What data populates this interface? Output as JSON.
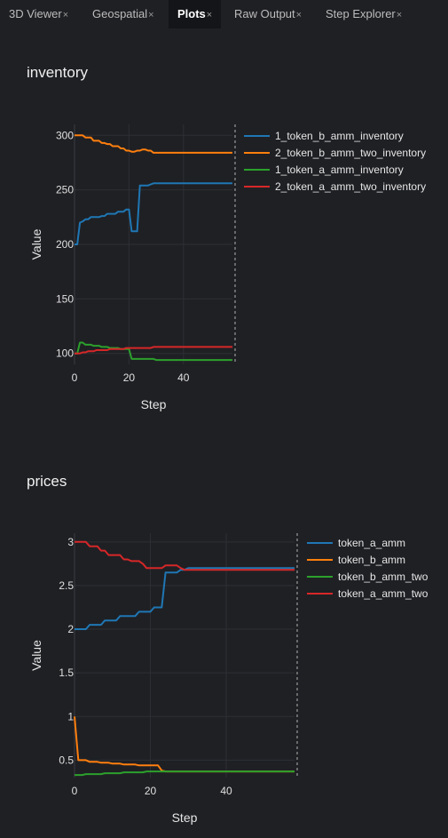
{
  "tabs": [
    {
      "label": "3D Viewer",
      "close": "×",
      "active": false
    },
    {
      "label": "Geospatial",
      "close": "×",
      "active": false
    },
    {
      "label": "Plots",
      "close": "×",
      "active": true
    },
    {
      "label": "Raw Output",
      "close": "×",
      "active": false
    },
    {
      "label": "Step Explorer",
      "close": "×",
      "active": false
    }
  ],
  "panels": {
    "inventory": {
      "title": "inventory"
    },
    "prices": {
      "title": "prices"
    }
  },
  "colors": {
    "blue": "#1f77b4",
    "orange": "#ff7f0e",
    "green": "#2ca02c",
    "red": "#d62728"
  },
  "chart_data": [
    {
      "type": "line",
      "title": "inventory",
      "xlabel": "Step",
      "ylabel": "Value",
      "xlim": [
        0,
        58
      ],
      "ylim": [
        90,
        310
      ],
      "xticks": [
        0,
        20,
        40
      ],
      "yticks": [
        100,
        150,
        200,
        250,
        300
      ],
      "ytick_labels": [
        "100",
        "150",
        "200",
        "250",
        "300"
      ],
      "legend_position": "right",
      "series": [
        {
          "name": "1_token_b_amm_inventory",
          "color": "#1f77b4",
          "x": [
            0,
            1,
            2,
            3,
            4,
            5,
            6,
            7,
            8,
            9,
            10,
            11,
            12,
            13,
            14,
            15,
            16,
            17,
            18,
            19,
            20,
            21,
            22,
            23,
            24,
            25,
            26,
            27,
            28,
            29,
            30,
            35,
            40,
            45,
            50,
            58
          ],
          "y": [
            200,
            200,
            220,
            221,
            223,
            223,
            225,
            225,
            225,
            225,
            226,
            226,
            228,
            228,
            228,
            228,
            230,
            230,
            230,
            232,
            232,
            212,
            212,
            212,
            254,
            254,
            254,
            254,
            255,
            256,
            256,
            256,
            256,
            256,
            256,
            256
          ]
        },
        {
          "name": "2_token_b_amm_two_inventory",
          "color": "#ff7f0e",
          "x": [
            0,
            1,
            2,
            3,
            4,
            5,
            6,
            7,
            8,
            9,
            10,
            11,
            12,
            13,
            14,
            15,
            16,
            17,
            18,
            19,
            20,
            21,
            22,
            23,
            24,
            25,
            26,
            27,
            28,
            29,
            30,
            35,
            40,
            45,
            50,
            58
          ],
          "y": [
            300,
            300,
            300,
            300,
            298,
            298,
            298,
            295,
            295,
            295,
            293,
            293,
            292,
            292,
            290,
            290,
            290,
            288,
            288,
            286,
            286,
            285,
            285,
            286,
            286,
            287,
            287,
            286,
            286,
            284,
            284,
            284,
            284,
            284,
            284,
            284
          ]
        },
        {
          "name": "1_token_a_amm_inventory",
          "color": "#2ca02c",
          "x": [
            0,
            1,
            2,
            3,
            4,
            5,
            6,
            7,
            8,
            9,
            10,
            11,
            12,
            13,
            14,
            15,
            16,
            17,
            18,
            19,
            20,
            21,
            22,
            23,
            24,
            25,
            26,
            27,
            28,
            29,
            30,
            35,
            40,
            45,
            50,
            58
          ],
          "y": [
            100,
            100,
            110,
            110,
            108,
            108,
            108,
            107,
            107,
            107,
            106,
            106,
            106,
            105,
            105,
            105,
            105,
            104,
            104,
            104,
            104,
            95,
            95,
            95,
            95,
            95,
            95,
            95,
            95,
            95,
            94,
            94,
            94,
            94,
            94,
            94
          ]
        },
        {
          "name": "2_token_a_amm_two_inventory",
          "color": "#d62728",
          "x": [
            0,
            1,
            2,
            3,
            4,
            5,
            6,
            7,
            8,
            9,
            10,
            11,
            12,
            13,
            14,
            15,
            16,
            17,
            18,
            19,
            20,
            21,
            22,
            23,
            24,
            25,
            26,
            27,
            28,
            29,
            30,
            35,
            40,
            45,
            50,
            58
          ],
          "y": [
            100,
            100,
            100,
            101,
            101,
            102,
            102,
            102,
            103,
            103,
            103,
            103,
            103,
            104,
            104,
            104,
            104,
            104,
            104,
            105,
            105,
            105,
            105,
            105,
            105,
            105,
            105,
            105,
            105,
            106,
            106,
            106,
            106,
            106,
            106,
            106
          ]
        }
      ]
    },
    {
      "type": "line",
      "title": "prices",
      "xlabel": "Step",
      "ylabel": "Value",
      "xlim": [
        0,
        58
      ],
      "ylim": [
        0.3,
        3.1
      ],
      "xticks": [
        0,
        20,
        40
      ],
      "yticks": [
        0.5,
        1,
        1.5,
        2,
        2.5,
        3
      ],
      "ytick_labels": [
        "0.5",
        "1",
        "1.5",
        "2",
        "2.5",
        "3"
      ],
      "legend_position": "right",
      "series": [
        {
          "name": "token_a_amm",
          "color": "#1f77b4",
          "x": [
            0,
            1,
            2,
            3,
            4,
            5,
            6,
            7,
            8,
            9,
            10,
            11,
            12,
            13,
            14,
            15,
            16,
            17,
            18,
            19,
            20,
            21,
            22,
            23,
            24,
            25,
            26,
            27,
            28,
            29,
            30,
            35,
            40,
            45,
            50,
            58
          ],
          "y": [
            2.0,
            2.0,
            2.0,
            2.0,
            2.05,
            2.05,
            2.05,
            2.05,
            2.1,
            2.1,
            2.1,
            2.1,
            2.15,
            2.15,
            2.15,
            2.15,
            2.15,
            2.2,
            2.2,
            2.2,
            2.2,
            2.25,
            2.25,
            2.25,
            2.65,
            2.65,
            2.65,
            2.65,
            2.68,
            2.68,
            2.7,
            2.7,
            2.7,
            2.7,
            2.7,
            2.7
          ]
        },
        {
          "name": "token_b_amm",
          "color": "#ff7f0e",
          "x": [
            0,
            1,
            2,
            3,
            4,
            5,
            6,
            7,
            8,
            9,
            10,
            11,
            12,
            13,
            14,
            15,
            16,
            17,
            18,
            19,
            20,
            21,
            22,
            23,
            24,
            25,
            26,
            27,
            28,
            29,
            30,
            35,
            40,
            45,
            50,
            58
          ],
          "y": [
            1.0,
            0.5,
            0.5,
            0.5,
            0.48,
            0.48,
            0.48,
            0.47,
            0.47,
            0.47,
            0.46,
            0.46,
            0.46,
            0.45,
            0.45,
            0.45,
            0.45,
            0.44,
            0.44,
            0.44,
            0.44,
            0.44,
            0.44,
            0.38,
            0.37,
            0.37,
            0.37,
            0.37,
            0.37,
            0.37,
            0.37,
            0.37,
            0.37,
            0.37,
            0.37,
            0.37
          ]
        },
        {
          "name": "token_b_amm_two",
          "color": "#2ca02c",
          "x": [
            0,
            1,
            2,
            3,
            4,
            5,
            6,
            7,
            8,
            9,
            10,
            11,
            12,
            13,
            14,
            15,
            16,
            17,
            18,
            19,
            20,
            21,
            22,
            23,
            24,
            25,
            26,
            27,
            28,
            29,
            30,
            35,
            40,
            45,
            50,
            58
          ],
          "y": [
            0.33,
            0.33,
            0.33,
            0.34,
            0.34,
            0.34,
            0.34,
            0.34,
            0.35,
            0.35,
            0.35,
            0.35,
            0.35,
            0.36,
            0.36,
            0.36,
            0.36,
            0.36,
            0.36,
            0.37,
            0.37,
            0.37,
            0.37,
            0.37,
            0.37,
            0.37,
            0.37,
            0.37,
            0.37,
            0.37,
            0.37,
            0.37,
            0.37,
            0.37,
            0.37,
            0.37
          ]
        },
        {
          "name": "token_a_amm_two",
          "color": "#d62728",
          "x": [
            0,
            1,
            2,
            3,
            4,
            5,
            6,
            7,
            8,
            9,
            10,
            11,
            12,
            13,
            14,
            15,
            16,
            17,
            18,
            19,
            20,
            21,
            22,
            23,
            24,
            25,
            26,
            27,
            28,
            29,
            30,
            35,
            40,
            45,
            50,
            58
          ],
          "y": [
            3.0,
            3.0,
            3.0,
            3.0,
            2.95,
            2.95,
            2.95,
            2.9,
            2.9,
            2.85,
            2.85,
            2.85,
            2.85,
            2.8,
            2.8,
            2.78,
            2.78,
            2.78,
            2.75,
            2.7,
            2.7,
            2.7,
            2.7,
            2.7,
            2.73,
            2.73,
            2.73,
            2.73,
            2.7,
            2.68,
            2.68,
            2.68,
            2.68,
            2.68,
            2.68,
            2.68
          ]
        }
      ]
    }
  ]
}
